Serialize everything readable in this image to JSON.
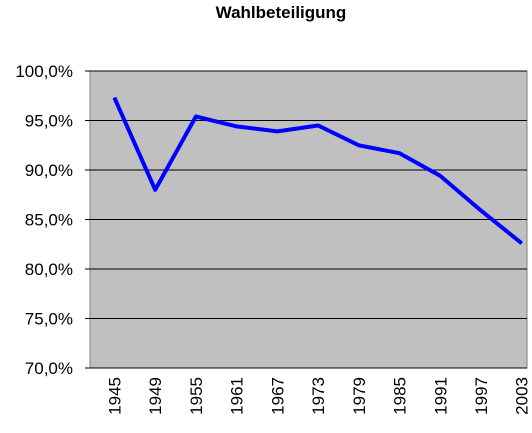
{
  "chart_data": {
    "type": "line",
    "title": "Wahlbeteiligung",
    "xlabel": "",
    "ylabel": "",
    "x": [
      "1945",
      "1949",
      "1955",
      "1961",
      "1967",
      "1973",
      "1979",
      "1985",
      "1991",
      "1997",
      "2003"
    ],
    "y_tick_labels": [
      "100,0%",
      "95,0%",
      "90,0%",
      "85,0%",
      "80,0%",
      "75,0%",
      "70,0%"
    ],
    "ylim": [
      70,
      100
    ],
    "grid": true,
    "legend": "none",
    "series": [
      {
        "values": [
          97.3,
          88.0,
          95.4,
          94.4,
          93.9,
          94.5,
          92.5,
          91.7,
          89.4,
          85.9,
          82.6
        ],
        "color": "#0000ff"
      }
    ],
    "plot_background": "#c0c0c0"
  }
}
